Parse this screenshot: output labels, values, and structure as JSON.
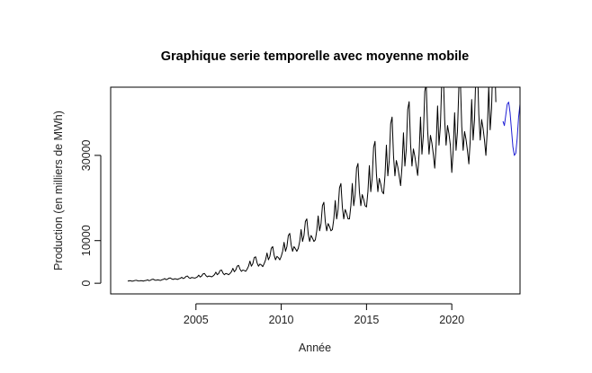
{
  "chart_data": {
    "type": "line",
    "title": "Graphique serie temporelle avec moyenne mobile",
    "xlabel": "Année",
    "ylabel": "Production (en milliers de MWh)",
    "xlim": [
      2000.0,
      2024.0
    ],
    "ylim": [
      -2500,
      46000
    ],
    "x_ticks": [
      2005,
      2010,
      2015,
      2020
    ],
    "x_tick_labels": [
      "2005",
      "2010",
      "2015",
      "2020"
    ],
    "y_ticks": [
      0,
      10000,
      30000
    ],
    "y_tick_labels": [
      "0",
      "10000",
      "30000"
    ],
    "grid": false,
    "legend": "none",
    "series": [
      {
        "name": "Production",
        "color": "#000000",
        "start": 2001.0,
        "step": 0.08333,
        "values": [
          500,
          550,
          600,
          480,
          520,
          650,
          700,
          580,
          520,
          600,
          580,
          500,
          620,
          650,
          800,
          600,
          700,
          900,
          950,
          750,
          700,
          800,
          750,
          650,
          820,
          900,
          1100,
          850,
          950,
          1200,
          1250,
          1000,
          900,
          1050,
          1000,
          900,
          1050,
          1150,
          1400,
          1100,
          1250,
          1600,
          1700,
          1300,
          1150,
          1350,
          1300,
          1200,
          1300,
          1500,
          1900,
          1450,
          1700,
          2200,
          2300,
          1800,
          1500,
          1700,
          1650,
          1500,
          1700,
          2000,
          2600,
          2000,
          2300,
          3000,
          3100,
          2400,
          2000,
          2300,
          2200,
          2000,
          2300,
          2700,
          3500,
          2700,
          3100,
          4000,
          4200,
          3300,
          2800,
          3100,
          3000,
          2800,
          3300,
          4000,
          5200,
          4000,
          4600,
          6000,
          6200,
          4800,
          4000,
          4500,
          4300,
          3900,
          4600,
          5500,
          7100,
          5500,
          6300,
          8200,
          8600,
          6600,
          5500,
          6300,
          6000,
          5500,
          6300,
          7500,
          9600,
          7500,
          8600,
          11200,
          11700,
          9000,
          7500,
          8600,
          8100,
          7500,
          8200,
          9800,
          12600,
          9800,
          11200,
          14500,
          15100,
          11600,
          9800,
          11200,
          10600,
          9800,
          10200,
          12300,
          15800,
          12300,
          14000,
          18200,
          19000,
          14500,
          12300,
          14000,
          13300,
          12300,
          12600,
          15100,
          19400,
          15100,
          17300,
          22400,
          23400,
          17900,
          15100,
          17300,
          16400,
          15100,
          15100,
          18200,
          23400,
          18200,
          20800,
          27000,
          28100,
          21500,
          18200,
          20800,
          19700,
          18200,
          17900,
          21500,
          27600,
          21500,
          24600,
          31900,
          33300,
          25500,
          21500,
          24600,
          23300,
          21500,
          21000,
          25200,
          32400,
          25200,
          28800,
          37400,
          39000,
          29900,
          25200,
          28800,
          27300,
          25200,
          22900,
          27500,
          35300,
          27500,
          31500,
          40800,
          42600,
          32600,
          27500,
          31500,
          29800,
          27500,
          25300,
          30300,
          39000,
          30300,
          34700,
          45000,
          46900,
          35900,
          30300,
          34700,
          32900,
          30300,
          27000,
          32400,
          41600,
          32400,
          37000,
          48000,
          50000,
          38300,
          32400,
          37000,
          35100,
          32400,
          26000,
          31200,
          40000,
          31200,
          35600,
          46200,
          48100,
          36800,
          31200,
          35600,
          33800,
          31200,
          28000,
          33600,
          43100,
          33600,
          38400,
          49800,
          51900,
          39700,
          33600,
          38400,
          36400,
          33600,
          30000,
          36000,
          46200,
          36000,
          41100,
          53300,
          55600,
          42500
        ]
      },
      {
        "name": "Moyenne mobile",
        "color": "#1f1fd6",
        "start": 2023.0,
        "step": 0.08333,
        "values": [
          38000,
          37000,
          39500,
          42000,
          42500,
          40000,
          36000,
          32000,
          30000,
          30500,
          34000,
          39000,
          42000
        ]
      }
    ]
  }
}
